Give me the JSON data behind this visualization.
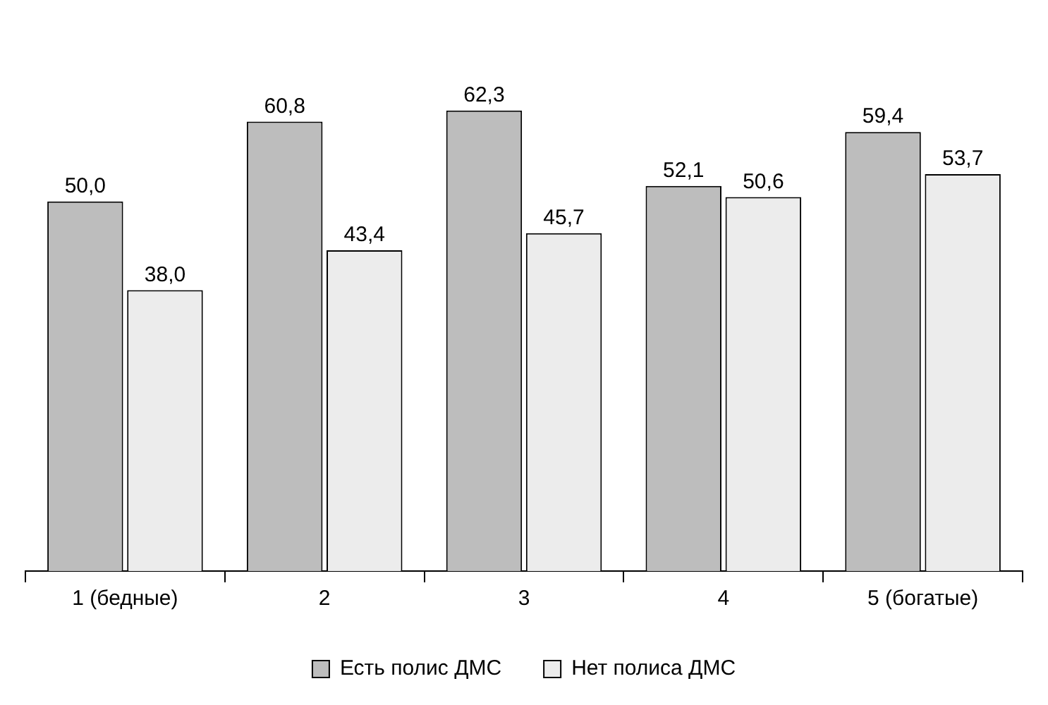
{
  "chart_data": {
    "type": "bar",
    "categories": [
      "1 (бедные)",
      "2",
      "3",
      "4",
      "5 (богатые)"
    ],
    "series": [
      {
        "name": "Есть полис ДМС",
        "color": "#bdbdbd",
        "values": [
          50.0,
          60.8,
          62.3,
          52.1,
          59.4
        ],
        "value_labels": [
          "50,0",
          "60,8",
          "62,3",
          "52,1",
          "59,4"
        ]
      },
      {
        "name": "Нет полиса ДМС",
        "color": "#ececec",
        "values": [
          38.0,
          43.4,
          45.7,
          50.6,
          53.7
        ],
        "value_labels": [
          "38,0",
          "43,4",
          "45,7",
          "50,6",
          "53,7"
        ]
      }
    ],
    "legend": "bottom",
    "grid": false
  }
}
